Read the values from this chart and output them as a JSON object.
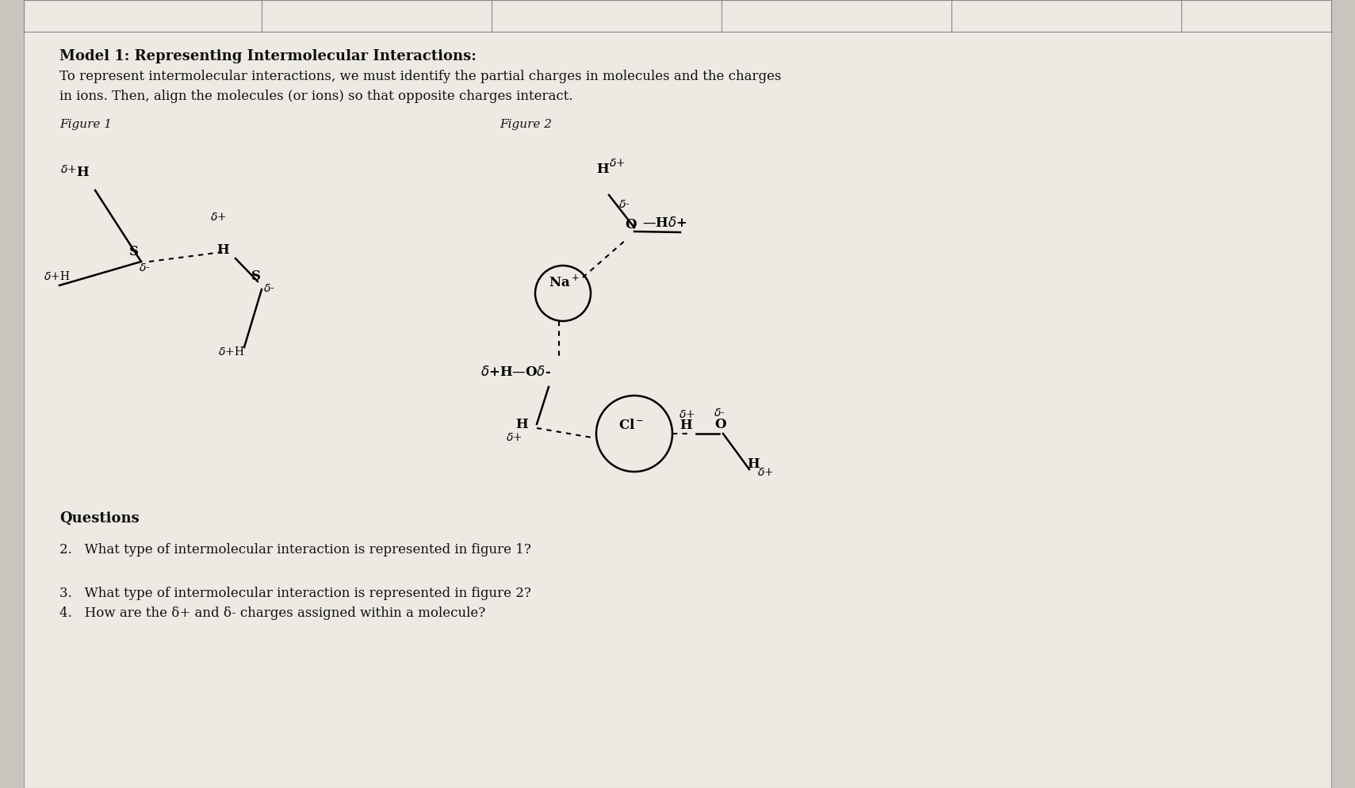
{
  "bg_color": "#c8c5be",
  "paper_color": "#edeae4",
  "title_bold": "Model 1: Representing Intermolecular Interactions:",
  "intro_text1": "To represent intermolecular interactions, we must identify the partial charges in molecules and the charges",
  "intro_text2": "in ions. Then, align the molecules (or ions) so that opposite charges interact.",
  "fig1_label": "Figure 1",
  "fig2_label": "Figure 2",
  "questions_title": "Questions",
  "q2": "2.   What type of intermolecular interaction is represented in figure 1?",
  "q3": "3.   What type of intermolecular interaction is represented in figure 2?",
  "q4": "4.   How are the δ+ and δ- charges assigned within a molecule?"
}
